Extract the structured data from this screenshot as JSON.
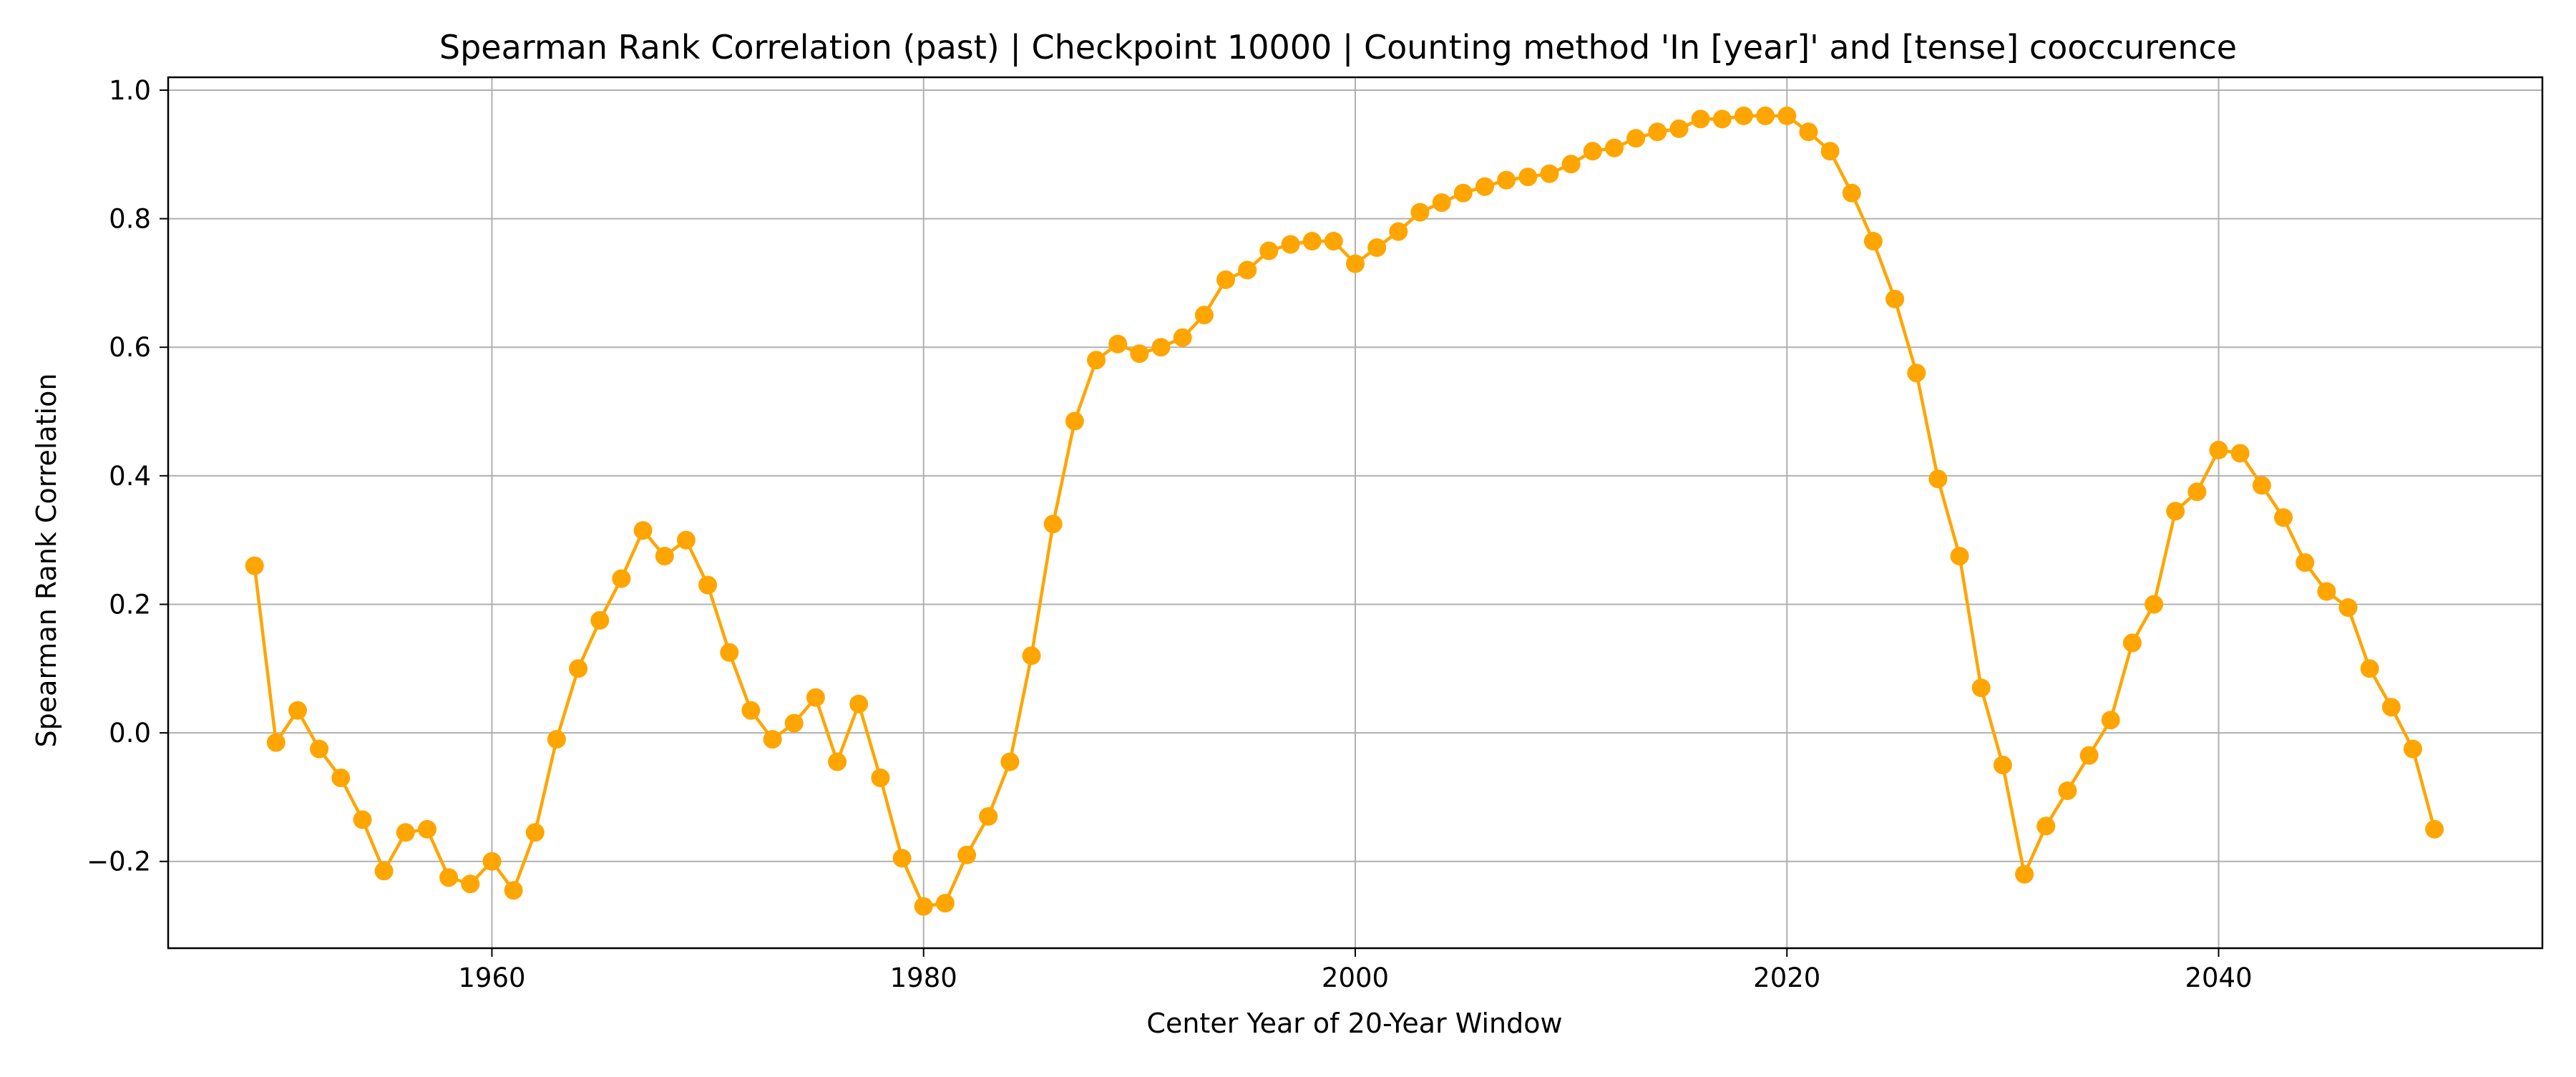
{
  "chart_data": {
    "type": "line",
    "title": "Spearman Rank Correlation (past) | Checkpoint 10000 | Counting method 'In [year]' and [tense] cooccurence",
    "xlabel": "Center Year of 20-Year Window",
    "ylabel": "Spearman Rank Correlation",
    "xlim": [
      1945,
      2055
    ],
    "ylim": [
      -0.335,
      1.02
    ],
    "x_ticks": [
      1960,
      1980,
      2000,
      2020,
      2040
    ],
    "x_tick_labels": [
      "1960",
      "1980",
      "2000",
      "2020",
      "2040"
    ],
    "y_ticks": [
      -0.2,
      0.0,
      0.2,
      0.4,
      0.6,
      0.8,
      1.0
    ],
    "y_tick_labels": [
      "−0.2",
      "0.0",
      "0.2",
      "0.4",
      "0.6",
      "0.8",
      "1.0"
    ],
    "grid": true,
    "marker": "circle",
    "series": [
      {
        "color": "#ffa500",
        "x": [
          1949,
          1950,
          1951,
          1952,
          1953,
          1954,
          1955,
          1956,
          1957,
          1958,
          1959,
          1960,
          1961,
          1962,
          1963,
          1964,
          1965,
          1966,
          1967,
          1968,
          1969,
          1970,
          1971,
          1972,
          1973,
          1974,
          1975,
          1976,
          1977,
          1978,
          1979,
          1980,
          1981,
          1982,
          1983,
          1984,
          1985,
          1986,
          1987,
          1988,
          1989,
          1990,
          1991,
          1992,
          1993,
          1994,
          1995,
          1996,
          1997,
          1998,
          1999,
          2000,
          2001,
          2002,
          2003,
          2004,
          2005,
          2006,
          2007,
          2008,
          2009,
          2010,
          2011,
          2012,
          2013,
          2014,
          2015,
          2016,
          2017,
          2018,
          2019,
          2020,
          2021,
          2022,
          2023,
          2024,
          2025,
          2026,
          2027,
          2028,
          2029,
          2030,
          2031,
          2032,
          2033,
          2034,
          2035,
          2036,
          2037,
          2038,
          2039,
          2040,
          2041,
          2042,
          2043,
          2044,
          2045,
          2046,
          2047,
          2048,
          2049,
          2050
        ],
        "y": [
          0.26,
          -0.015,
          0.035,
          -0.025,
          -0.07,
          -0.135,
          -0.215,
          -0.155,
          -0.15,
          -0.225,
          -0.235,
          -0.2,
          -0.245,
          -0.155,
          -0.01,
          0.1,
          0.175,
          0.24,
          0.315,
          0.275,
          0.3,
          0.23,
          0.125,
          0.035,
          -0.01,
          0.015,
          0.055,
          -0.045,
          0.045,
          -0.07,
          -0.195,
          -0.27,
          -0.265,
          -0.19,
          -0.13,
          -0.045,
          0.12,
          0.325,
          0.485,
          0.58,
          0.605,
          0.59,
          0.6,
          0.615,
          0.65,
          0.705,
          0.72,
          0.75,
          0.76,
          0.765,
          0.765,
          0.73,
          0.755,
          0.78,
          0.81,
          0.825,
          0.84,
          0.85,
          0.86,
          0.865,
          0.87,
          0.885,
          0.905,
          0.91,
          0.925,
          0.935,
          0.94,
          0.955,
          0.955,
          0.96,
          0.96,
          0.96,
          0.935,
          0.905,
          0.84,
          0.765,
          0.675,
          0.56,
          0.395,
          0.275,
          0.07,
          -0.05,
          -0.22,
          -0.145,
          -0.09,
          -0.035,
          0.02,
          0.14,
          0.2,
          0.345,
          0.375,
          0.44,
          0.435,
          0.385,
          0.335,
          0.265,
          0.22,
          0.195,
          0.1,
          0.04,
          -0.025,
          -0.15
        ]
      }
    ]
  }
}
